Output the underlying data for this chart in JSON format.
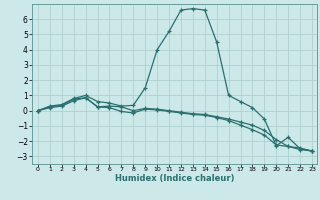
{
  "xlabel": "Humidex (Indice chaleur)",
  "background_color": "#cde8e8",
  "grid_color": "#b0d0d0",
  "line_color": "#2a7070",
  "xlim": [
    -0.5,
    23.4
  ],
  "ylim": [
    -3.5,
    7.0
  ],
  "xticks": [
    0,
    1,
    2,
    3,
    4,
    5,
    6,
    7,
    8,
    9,
    10,
    11,
    12,
    13,
    14,
    15,
    16,
    17,
    18,
    19,
    20,
    21,
    22,
    23
  ],
  "yticks": [
    -3,
    -2,
    -1,
    0,
    1,
    2,
    3,
    4,
    5,
    6
  ],
  "series": [
    [
      0.0,
      0.3,
      0.4,
      0.8,
      1.0,
      0.6,
      0.5,
      0.3,
      0.35,
      1.5,
      4.0,
      5.2,
      6.6,
      6.7,
      6.6,
      4.5,
      1.0,
      0.6,
      0.2,
      -0.55,
      -2.3,
      -1.75,
      -2.5,
      -2.65
    ],
    [
      0.0,
      0.25,
      0.35,
      0.75,
      0.85,
      0.25,
      0.3,
      0.25,
      0.0,
      0.15,
      0.1,
      0.0,
      -0.1,
      -0.2,
      -0.25,
      -0.4,
      -0.55,
      -0.75,
      -0.95,
      -1.3,
      -1.9,
      -2.35,
      -2.45,
      -2.65
    ],
    [
      0.0,
      0.2,
      0.3,
      0.65,
      0.85,
      0.25,
      0.2,
      -0.05,
      -0.15,
      0.1,
      0.05,
      -0.05,
      -0.15,
      -0.25,
      -0.3,
      -0.45,
      -0.65,
      -0.95,
      -1.25,
      -1.6,
      -2.25,
      -2.35,
      -2.55,
      -2.65
    ]
  ]
}
